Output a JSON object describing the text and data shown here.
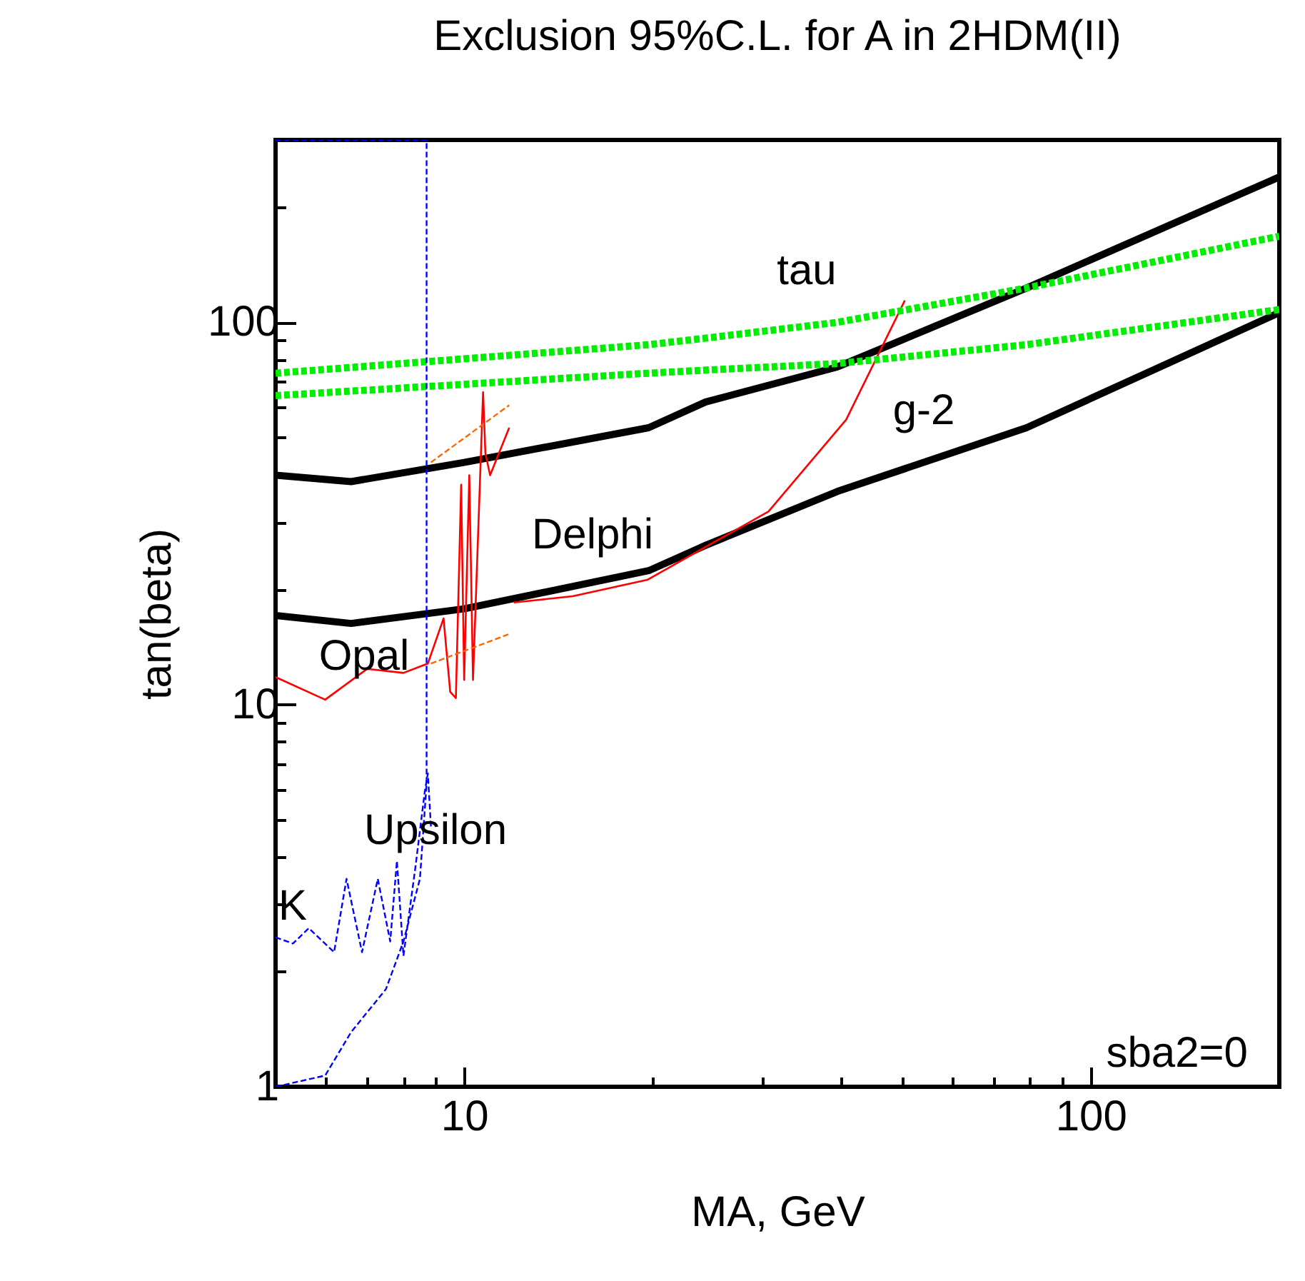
{
  "chart_data": {
    "type": "line",
    "title": "Exclusion 95%C.L. for A in 2HDM(II)",
    "xlabel": "MA,  GeV",
    "ylabel": "tan(beta)",
    "log": "xy",
    "xlim": [
      5,
      200
    ],
    "ylim": [
      1,
      300
    ],
    "xticks": [
      {
        "value": 5,
        "label": null
      },
      {
        "value": 6,
        "label": null
      },
      {
        "value": 7,
        "label": null
      },
      {
        "value": 8,
        "label": null
      },
      {
        "value": 9,
        "label": null
      },
      10,
      {
        "value": 20,
        "label": null
      },
      {
        "value": 30,
        "label": null
      },
      {
        "value": 40,
        "label": null
      },
      {
        "value": 50,
        "label": null
      },
      {
        "value": 60,
        "label": null
      },
      {
        "value": 70,
        "label": null
      },
      {
        "value": 80,
        "label": null
      },
      {
        "value": 90,
        "label": null
      },
      100,
      {
        "value": 200,
        "label": null
      }
    ],
    "yticks": [
      1,
      {
        "value": 2,
        "label": null
      },
      {
        "value": 3,
        "label": null
      },
      {
        "value": 4,
        "label": null
      },
      {
        "value": 5,
        "label": null
      },
      {
        "value": 6,
        "label": null
      },
      {
        "value": 7,
        "label": null
      },
      {
        "value": 8,
        "label": null
      },
      {
        "value": 9,
        "label": null
      },
      10,
      {
        "value": 20,
        "label": null
      },
      {
        "value": 30,
        "label": null
      },
      {
        "value": 40,
        "label": null
      },
      {
        "value": 50,
        "label": null
      },
      {
        "value": 60,
        "label": null
      },
      {
        "value": 70,
        "label": null
      },
      {
        "value": 80,
        "label": null
      },
      {
        "value": 90,
        "label": null
      },
      100,
      {
        "value": 200,
        "label": null
      },
      {
        "value": 300,
        "label": null
      }
    ],
    "grid": false,
    "legend": false,
    "series": [
      {
        "color": "#000000",
        "line_style": "solid",
        "x": [
          5,
          6.6,
          10,
          19.7,
          24.3,
          39.4,
          79,
          200
        ],
        "values": [
          39.8,
          38.3,
          43,
          53,
          61.9,
          76.4,
          123,
          240
        ]
      },
      {
        "color": "#000000",
        "line_style": "solid",
        "x": [
          5,
          6.6,
          10,
          19.7,
          24.3,
          39.4,
          79,
          200
        ],
        "values": [
          17.1,
          16.3,
          17.8,
          22.4,
          26.1,
          36.1,
          53,
          106
        ]
      },
      {
        "color": "#00ee00",
        "line_style": "dashed",
        "x": [
          5,
          19.7,
          24.3,
          39.4,
          79,
          200
        ],
        "values": [
          73.6,
          87.4,
          90.9,
          100,
          123,
          168
        ]
      },
      {
        "color": "#00ee00",
        "line_style": "dashed",
        "x": [
          5,
          19.7,
          24.3,
          39.4,
          79,
          200
        ],
        "values": [
          64.3,
          73.6,
          75,
          78,
          87.4,
          108
        ]
      },
      {
        "color": "#ff0000",
        "line_style": "solid",
        "x": [
          5,
          6,
          7,
          8,
          8.75,
          9.27,
          9.5,
          9.7,
          9.89,
          10,
          10.19,
          10.33,
          10.72,
          10.81,
          11.0,
          11.8
        ],
        "values": [
          11.8,
          10.3,
          12.4,
          12.1,
          12.8,
          16.8,
          10.8,
          10.4,
          37.6,
          11.6,
          39.8,
          11.6,
          65.6,
          45.5,
          39.8,
          53
        ]
      },
      {
        "color": "#ff0000",
        "line_style": "solid",
        "x": [
          12,
          13.2,
          14.9,
          19.6,
          30.6,
          40.7,
          50.5
        ],
        "values": [
          18.5,
          18.8,
          19.2,
          21.2,
          32,
          55.6,
          114
        ]
      },
      {
        "color": "#ff6600",
        "line_style": "dashed",
        "x": [
          8.85,
          11.8
        ],
        "values": [
          43,
          60.7
        ]
      },
      {
        "color": "#ff6600",
        "line_style": "dashed",
        "x": [
          8.85,
          11.8
        ],
        "values": [
          12.8,
          15.3
        ]
      },
      {
        "color": "#0000ff",
        "line_style": "dashed",
        "x": [
          5,
          6,
          6.6,
          7.5,
          8,
          8.5,
          8.71,
          8.71,
          5
        ],
        "values": [
          1,
          1.07,
          1.39,
          1.8,
          2.4,
          3.5,
          6.2,
          300,
          300
        ]
      },
      {
        "color": "#0000ff",
        "line_style": "dashed",
        "x": [
          5,
          5.33,
          5.65,
          6.2,
          6.49,
          6.87,
          7.28,
          7.62,
          7.81,
          8.0,
          8.35,
          8.65,
          8.75,
          8.85
        ],
        "values": [
          2.46,
          2.37,
          2.6,
          2.25,
          3.5,
          2.25,
          3.5,
          2.4,
          3.9,
          2.2,
          3.7,
          5.9,
          6.6,
          4.8
        ]
      }
    ],
    "annotations": [
      "tau",
      "g-2",
      "Delphi",
      "Opal",
      "Upsilon",
      "K",
      "sba2=0"
    ]
  }
}
